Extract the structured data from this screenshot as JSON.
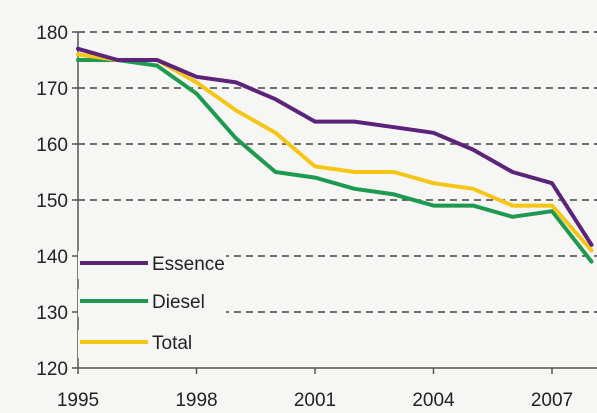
{
  "chart_data": {
    "type": "line",
    "title": "",
    "xlabel": "",
    "ylabel": "",
    "x": [
      1995,
      1996,
      1997,
      1998,
      1999,
      2000,
      2001,
      2002,
      2003,
      2004,
      2005,
      2006,
      2007,
      2008
    ],
    "x_ticks": [
      "1995",
      "1998",
      "2001",
      "2004",
      "2007"
    ],
    "y_ticks": [
      "120",
      "130",
      "140",
      "150",
      "160",
      "170",
      "180"
    ],
    "ylim": [
      120,
      180
    ],
    "grid": "horizontal dashed",
    "legend_position": "bottom-left",
    "series": [
      {
        "name": "Essence",
        "color": "#5b2379",
        "values": [
          177,
          175,
          175,
          172,
          171,
          168,
          164,
          164,
          163,
          162,
          159,
          155,
          153,
          142
        ]
      },
      {
        "name": "Diesel",
        "color": "#1e9a50",
        "values": [
          175,
          175,
          174,
          169,
          161,
          155,
          154,
          152,
          151,
          149,
          149,
          147,
          148,
          139
        ]
      },
      {
        "name": "Total",
        "color": "#f5c518",
        "values": [
          176,
          175,
          175,
          171,
          166,
          162,
          156,
          155,
          155,
          153,
          152,
          149,
          149,
          141
        ]
      }
    ]
  }
}
